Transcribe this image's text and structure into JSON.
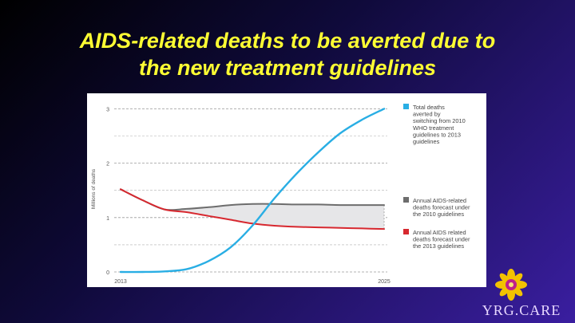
{
  "slide": {
    "title_line1": "AIDS-related deaths to be averted due to",
    "title_line2": "the new treatment guidelines"
  },
  "logo": {
    "text": "YRG.CARE",
    "accent_color": "#f2c200"
  },
  "colors": {
    "averted": "#29aee4",
    "guidelines2010": "#6d6d6d",
    "guidelines2013": "#d7282f",
    "gap_fill": "#e6e6e8",
    "title": "#ffff33"
  },
  "chart_data": {
    "type": "line",
    "title": "",
    "xlabel": "",
    "ylabel": "Millions of deaths",
    "x": [
      2013,
      2014,
      2015,
      2016,
      2017,
      2018,
      2019,
      2020,
      2021,
      2022,
      2023,
      2024,
      2025
    ],
    "x_ticks": [
      2013,
      2025
    ],
    "y_ticks": [
      0,
      1,
      2,
      3
    ],
    "ylim": [
      0,
      3.05
    ],
    "grid": "dashed-horizontal",
    "legend_position": "right",
    "series": [
      {
        "name": "Total deaths averted by switching from 2010 WHO treatment guidelines to 2013 guidelines",
        "legend_lines": [
          "Total deaths",
          "averted by",
          "switching from 2010",
          "WHO treatment",
          "guidelines to 2013",
          "guidelines"
        ],
        "color_key": "averted",
        "values": [
          0.0,
          0.0,
          0.01,
          0.05,
          0.2,
          0.45,
          0.85,
          1.35,
          1.8,
          2.2,
          2.55,
          2.8,
          3.0
        ]
      },
      {
        "name": "Annual AIDS-related deaths forecast under the 2010 guidelines",
        "legend_lines": [
          "Annual AIDS-related",
          "deaths forecast under",
          "the 2010 guidelines"
        ],
        "color_key": "guidelines2010",
        "values": [
          1.52,
          1.32,
          1.15,
          1.16,
          1.19,
          1.23,
          1.25,
          1.25,
          1.24,
          1.24,
          1.23,
          1.23,
          1.23
        ]
      },
      {
        "name": "Annual AIDS related deaths forecast under the 2013 guidelines",
        "legend_lines": [
          "Annual AIDS related",
          "deaths forecast under",
          "the 2013 guidelines"
        ],
        "color_key": "guidelines2013",
        "values": [
          1.52,
          1.32,
          1.15,
          1.1,
          1.03,
          0.96,
          0.89,
          0.85,
          0.83,
          0.82,
          0.81,
          0.8,
          0.79
        ]
      }
    ]
  }
}
